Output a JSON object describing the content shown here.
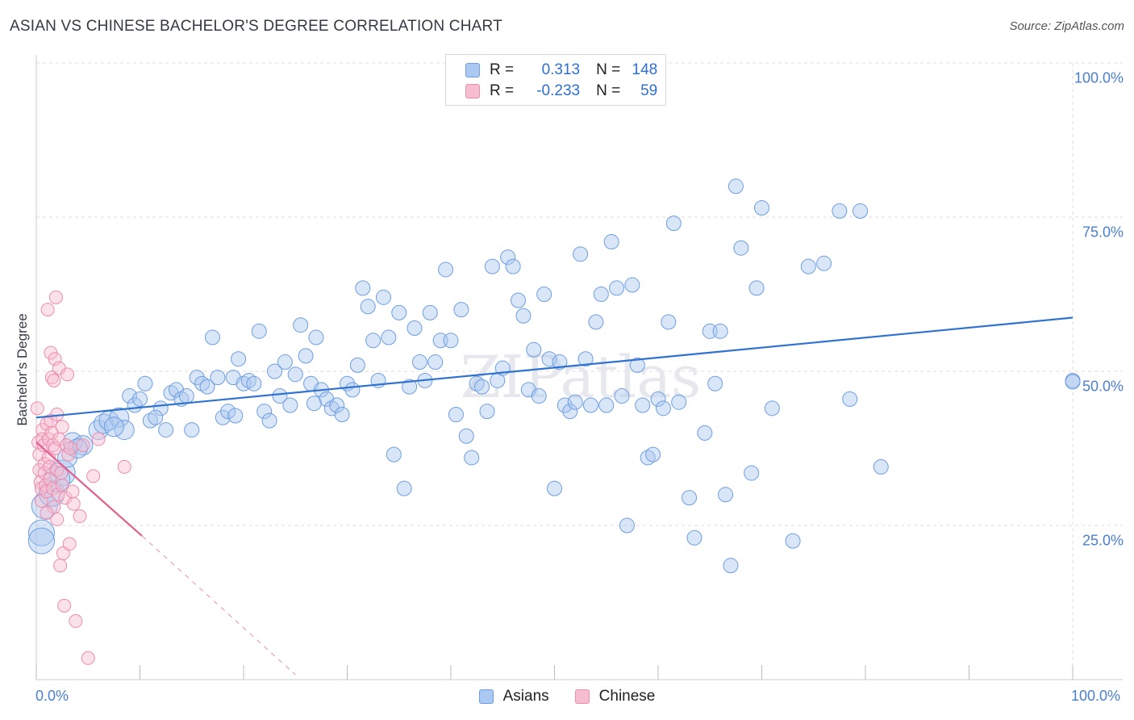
{
  "title": "ASIAN VS CHINESE BACHELOR'S DEGREE CORRELATION CHART",
  "source": "Source: ZipAtlas.com",
  "watermark": "ZIPatlas",
  "legend": {
    "rows": [
      {
        "r_label": "R =",
        "r_value": "0.313",
        "n_label": "N =",
        "n_value": "148"
      },
      {
        "r_label": "R =",
        "r_value": "-0.233",
        "n_label": "N =",
        "n_value": "59"
      }
    ]
  },
  "bottom_legend": [
    "Asians",
    "Chinese"
  ],
  "colors": {
    "asian_fill": "#aac8f0",
    "asian_stroke": "#6e9ee0",
    "asian_line": "#2f72d0",
    "chinese_fill": "#f6bcd0",
    "chinese_stroke": "#ec8cae",
    "chinese_line": "#e0608e",
    "tick_text": "#4a7fd0",
    "grid": "#dddddd"
  },
  "chart_data": {
    "type": "scatter",
    "title": "ASIAN VS CHINESE BACHELOR'S DEGREE CORRELATION CHART",
    "xlabel": "",
    "ylabel": "Bachelor's Degree",
    "xlim": [
      0,
      100
    ],
    "ylim": [
      0,
      100
    ],
    "x_tick_labels": [
      "0.0%",
      "100.0%"
    ],
    "y_ticks": [
      25,
      50,
      75,
      100
    ],
    "y_tick_labels": [
      "25.0%",
      "50.0%",
      "75.0%",
      "100.0%"
    ],
    "grid": true,
    "legend_position": "top-center",
    "series": [
      {
        "name": "Asians",
        "r": 0.313,
        "n": 148,
        "trend": {
          "x0": 0,
          "y0": 42.5,
          "x1": 100,
          "y1": 58.7
        },
        "points": [
          [
            0.5,
            23.8
          ],
          [
            0.5,
            22.5
          ],
          [
            0.8,
            28.2
          ],
          [
            1.5,
            30.2
          ],
          [
            2.5,
            33.5
          ],
          [
            3.0,
            36.0
          ],
          [
            3.5,
            38.5
          ],
          [
            4.5,
            38.0
          ],
          [
            6.0,
            40.5
          ],
          [
            6.5,
            41.5
          ],
          [
            7.0,
            42.0
          ],
          [
            8.0,
            42.5
          ],
          [
            8.5,
            40.5
          ],
          [
            9.0,
            46.0
          ],
          [
            9.5,
            44.5
          ],
          [
            10.0,
            45.5
          ],
          [
            10.5,
            48.0
          ],
          [
            11.0,
            42.0
          ],
          [
            12.0,
            44.0
          ],
          [
            12.5,
            40.5
          ],
          [
            13.0,
            46.5
          ],
          [
            13.5,
            47.0
          ],
          [
            14.0,
            45.5
          ],
          [
            14.5,
            46.0
          ],
          [
            15.0,
            40.5
          ],
          [
            15.5,
            49.0
          ],
          [
            16.0,
            48.0
          ],
          [
            16.5,
            47.5
          ],
          [
            17.0,
            55.5
          ],
          [
            17.5,
            49.0
          ],
          [
            18.0,
            42.5
          ],
          [
            18.5,
            43.5
          ],
          [
            19.0,
            49.0
          ],
          [
            19.5,
            52.0
          ],
          [
            20.0,
            48.0
          ],
          [
            20.5,
            48.5
          ],
          [
            21.0,
            48.0
          ],
          [
            21.5,
            56.5
          ],
          [
            22.0,
            43.5
          ],
          [
            22.5,
            42.0
          ],
          [
            23.0,
            50.0
          ],
          [
            23.5,
            46.0
          ],
          [
            24.0,
            51.5
          ],
          [
            24.5,
            44.5
          ],
          [
            25.0,
            49.5
          ],
          [
            25.5,
            57.5
          ],
          [
            26.0,
            52.5
          ],
          [
            26.5,
            48.0
          ],
          [
            27.0,
            55.5
          ],
          [
            27.5,
            47.0
          ],
          [
            28.0,
            45.5
          ],
          [
            28.5,
            44.0
          ],
          [
            29.0,
            44.5
          ],
          [
            29.5,
            43.0
          ],
          [
            30.0,
            48.0
          ],
          [
            30.5,
            47.0
          ],
          [
            31.0,
            51.0
          ],
          [
            31.5,
            63.5
          ],
          [
            32.0,
            60.5
          ],
          [
            32.5,
            55.0
          ],
          [
            33.0,
            48.5
          ],
          [
            33.5,
            62.0
          ],
          [
            34.0,
            55.5
          ],
          [
            34.5,
            36.5
          ],
          [
            35.0,
            59.5
          ],
          [
            35.5,
            31.0
          ],
          [
            36.0,
            47.5
          ],
          [
            36.5,
            57.0
          ],
          [
            37.0,
            51.5
          ],
          [
            37.5,
            48.5
          ],
          [
            38.0,
            59.5
          ],
          [
            38.5,
            51.5
          ],
          [
            39.0,
            55.0
          ],
          [
            39.5,
            66.5
          ],
          [
            40.0,
            55.0
          ],
          [
            40.5,
            43.0
          ],
          [
            41.0,
            60.0
          ],
          [
            41.5,
            39.5
          ],
          [
            42.0,
            36.0
          ],
          [
            42.5,
            48.0
          ],
          [
            43.0,
            47.5
          ],
          [
            43.5,
            43.5
          ],
          [
            44.0,
            67.0
          ],
          [
            44.5,
            48.5
          ],
          [
            45.0,
            50.5
          ],
          [
            45.5,
            68.5
          ],
          [
            46.0,
            67.0
          ],
          [
            46.5,
            61.5
          ],
          [
            47.0,
            59.0
          ],
          [
            47.5,
            47.0
          ],
          [
            48.0,
            53.5
          ],
          [
            48.5,
            46.0
          ],
          [
            49.0,
            62.5
          ],
          [
            49.5,
            52.0
          ],
          [
            50.0,
            31.0
          ],
          [
            50.5,
            51.5
          ],
          [
            51.0,
            44.5
          ],
          [
            51.5,
            43.5
          ],
          [
            52.0,
            45.0
          ],
          [
            52.5,
            69.0
          ],
          [
            53.0,
            52.0
          ],
          [
            53.5,
            44.5
          ],
          [
            54.0,
            58.0
          ],
          [
            54.5,
            62.5
          ],
          [
            55.0,
            44.5
          ],
          [
            55.5,
            71.0
          ],
          [
            56.0,
            63.5
          ],
          [
            56.5,
            46.0
          ],
          [
            57.0,
            25.0
          ],
          [
            57.5,
            64.0
          ],
          [
            58.0,
            51.0
          ],
          [
            58.5,
            44.5
          ],
          [
            59.0,
            36.0
          ],
          [
            59.5,
            36.5
          ],
          [
            60.0,
            45.5
          ],
          [
            60.5,
            44.0
          ],
          [
            61.0,
            58.0
          ],
          [
            61.5,
            74.0
          ],
          [
            62.0,
            45.0
          ],
          [
            63.0,
            29.5
          ],
          [
            63.5,
            23.0
          ],
          [
            64.5,
            40.0
          ],
          [
            65.0,
            56.5
          ],
          [
            65.5,
            48.0
          ],
          [
            66.0,
            56.5
          ],
          [
            66.5,
            30.0
          ],
          [
            67.0,
            18.5
          ],
          [
            67.5,
            80.0
          ],
          [
            68.0,
            70.0
          ],
          [
            69.0,
            33.5
          ],
          [
            69.5,
            63.5
          ],
          [
            70.0,
            76.5
          ],
          [
            71.0,
            44.0
          ],
          [
            73.0,
            22.5
          ],
          [
            74.5,
            67.0
          ],
          [
            76.0,
            67.5
          ],
          [
            77.5,
            76.0
          ],
          [
            78.5,
            45.5
          ],
          [
            79.5,
            76.0
          ],
          [
            81.5,
            34.5
          ],
          [
            100.0,
            48.5
          ],
          [
            100.0,
            48.3
          ],
          [
            2.0,
            32.5
          ],
          [
            4.0,
            37.5
          ],
          [
            7.5,
            41.0
          ],
          [
            11.5,
            42.5
          ],
          [
            19.2,
            42.8
          ],
          [
            26.8,
            44.8
          ]
        ]
      },
      {
        "name": "Chinese",
        "r": -0.233,
        "n": 59,
        "trend": {
          "x0": 0,
          "y0": 38.5,
          "x1": 10.2,
          "y1": 23.3,
          "dash_x1": 25.0,
          "dash_y1": 0.8
        },
        "points": [
          [
            0.1,
            44.0
          ],
          [
            0.2,
            38.5
          ],
          [
            0.3,
            36.5
          ],
          [
            0.3,
            34.0
          ],
          [
            0.4,
            32.0
          ],
          [
            0.5,
            31.0
          ],
          [
            0.5,
            29.0
          ],
          [
            0.6,
            40.5
          ],
          [
            0.6,
            39.0
          ],
          [
            0.7,
            38.0
          ],
          [
            0.8,
            35.0
          ],
          [
            0.8,
            33.5
          ],
          [
            0.9,
            31.5
          ],
          [
            1.0,
            41.5
          ],
          [
            1.0,
            30.5
          ],
          [
            1.1,
            60.0
          ],
          [
            1.2,
            39.0
          ],
          [
            1.2,
            36.0
          ],
          [
            1.3,
            34.5
          ],
          [
            1.3,
            32.5
          ],
          [
            1.4,
            53.0
          ],
          [
            1.4,
            42.0
          ],
          [
            1.5,
            49.0
          ],
          [
            1.5,
            40.0
          ],
          [
            1.6,
            38.0
          ],
          [
            1.6,
            31.0
          ],
          [
            1.7,
            48.5
          ],
          [
            1.7,
            28.0
          ],
          [
            1.8,
            52.0
          ],
          [
            1.8,
            37.5
          ],
          [
            1.9,
            62.0
          ],
          [
            2.0,
            43.0
          ],
          [
            2.0,
            34.0
          ],
          [
            2.1,
            30.0
          ],
          [
            2.2,
            50.5
          ],
          [
            2.2,
            39.0
          ],
          [
            2.3,
            18.5
          ],
          [
            2.4,
            33.5
          ],
          [
            2.5,
            41.0
          ],
          [
            2.5,
            31.5
          ],
          [
            2.6,
            20.5
          ],
          [
            2.7,
            12.0
          ],
          [
            2.8,
            29.5
          ],
          [
            2.9,
            38.0
          ],
          [
            3.0,
            49.5
          ],
          [
            3.1,
            36.5
          ],
          [
            3.2,
            22.0
          ],
          [
            3.3,
            37.5
          ],
          [
            3.5,
            30.5
          ],
          [
            3.6,
            28.5
          ],
          [
            3.8,
            9.5
          ],
          [
            4.2,
            26.5
          ],
          [
            4.5,
            38.0
          ],
          [
            5.0,
            3.5
          ],
          [
            5.5,
            33.0
          ],
          [
            6.0,
            39.0
          ],
          [
            8.5,
            34.5
          ],
          [
            1.0,
            27.0
          ],
          [
            2.0,
            26.0
          ]
        ]
      }
    ]
  }
}
